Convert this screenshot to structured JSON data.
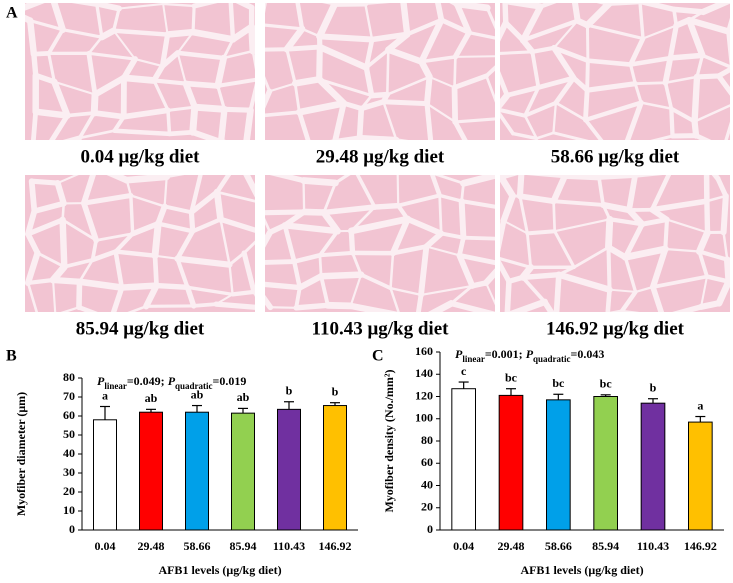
{
  "micrographs": {
    "label": "A",
    "captions": [
      "0.04 μg/kg diet",
      "29.48 μg/kg diet",
      "58.66 μg/kg diet",
      "85.94 μg/kg diet",
      "110.43 μg/kg diet",
      "146.92 μg/kg diet"
    ]
  },
  "chart_data": [
    {
      "type": "bar",
      "panel_label": "B",
      "annotation": [
        "P",
        "linear",
        "=0.049; ",
        "P",
        "quadratic",
        "=0.019"
      ],
      "x_label": "AFB1 levels (μg/kg diet)",
      "y_label": "Myofiber diameter (μm)",
      "categories": [
        "0.04",
        "29.48",
        "58.66",
        "85.94",
        "110.43",
        "146.92"
      ],
      "values": [
        58,
        62,
        62,
        61.5,
        63.5,
        65.5
      ],
      "errors": [
        7,
        1.5,
        3.5,
        2.5,
        4,
        1.5
      ],
      "letters": [
        "a",
        "ab",
        "ab",
        "ab",
        "b",
        "b"
      ],
      "colors": [
        "#ffffff",
        "#ff0000",
        "#00a0e9",
        "#92d050",
        "#7030a0",
        "#ffc000"
      ],
      "ylim": [
        0,
        80
      ],
      "yticks": [
        0,
        10,
        20,
        30,
        40,
        50,
        60,
        70,
        80
      ]
    },
    {
      "type": "bar",
      "panel_label": "C",
      "annotation": [
        "P",
        "linear",
        "=0.001; ",
        "P",
        "quadratic",
        "=0.043"
      ],
      "x_label": "AFB1 levels (μg/kg diet)",
      "y_label": "Myofiber density (No./mm²)",
      "categories": [
        "0.04",
        "29.48",
        "58.66",
        "85.94",
        "110.43",
        "146.92"
      ],
      "values": [
        127,
        121,
        117,
        120,
        114,
        97
      ],
      "errors": [
        6,
        6,
        5,
        1.5,
        4,
        5
      ],
      "letters": [
        "c",
        "bc",
        "bc",
        "bc",
        "b",
        "a"
      ],
      "colors": [
        "#ffffff",
        "#ff0000",
        "#00a0e9",
        "#92d050",
        "#7030a0",
        "#ffc000"
      ],
      "ylim": [
        0,
        160
      ],
      "yticks": [
        0,
        20,
        40,
        60,
        80,
        100,
        120,
        140,
        160
      ]
    }
  ]
}
